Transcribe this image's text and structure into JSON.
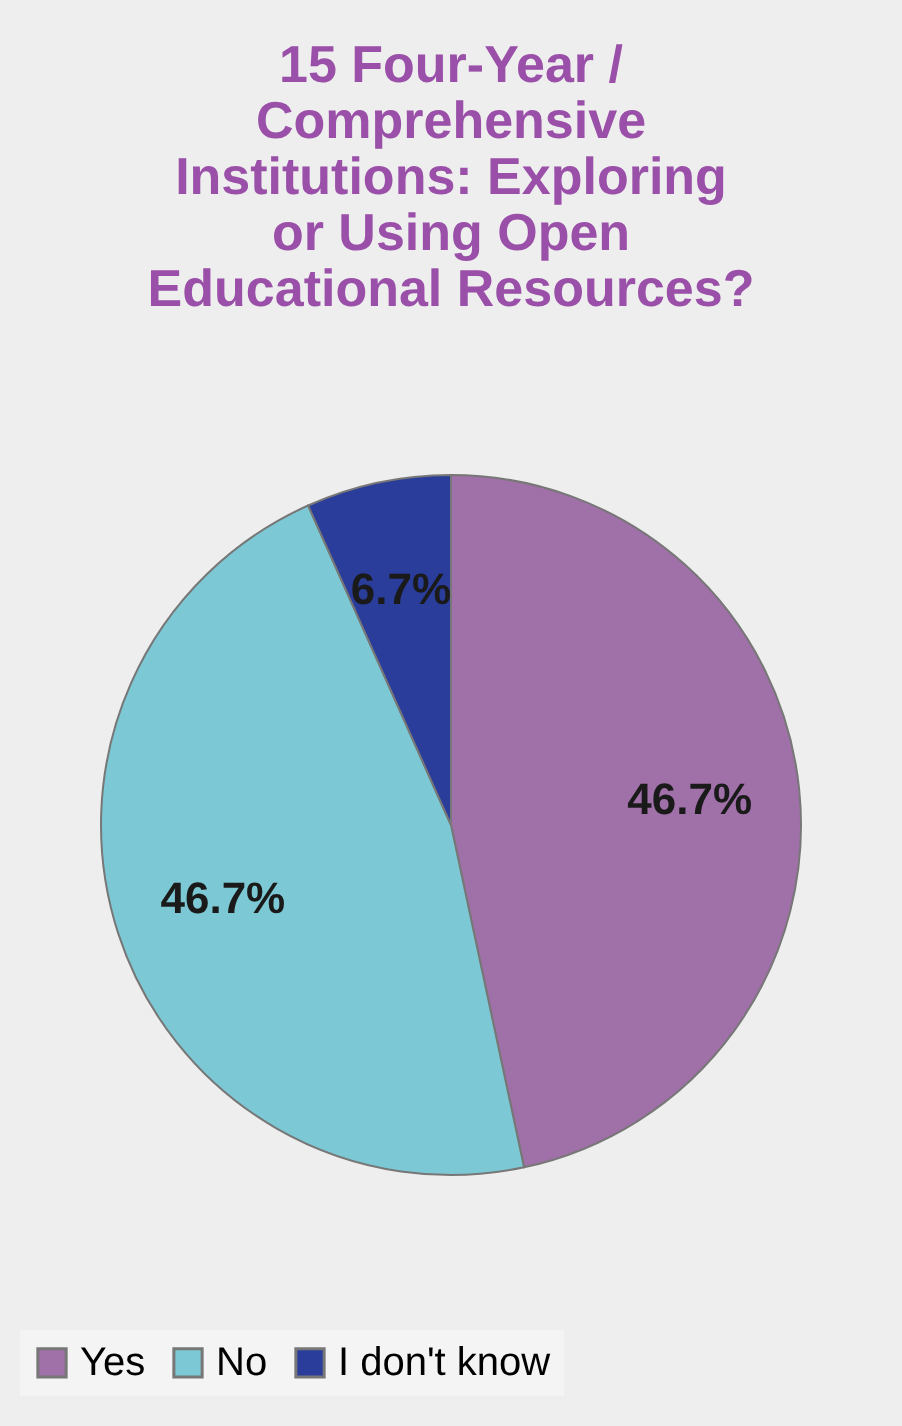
{
  "chart_data": {
    "type": "pie",
    "title": "15 Four-Year / Comprehensive Institutions: Exploring or Using Open Educational Resources?",
    "categories": [
      "Yes",
      "No",
      "I don't know"
    ],
    "values": [
      46.7,
      46.7,
      6.7
    ],
    "colors": [
      "#a070a8",
      "#7cc8d4",
      "#2a3d9a"
    ],
    "value_labels": [
      "46.7%",
      "46.7%",
      "6.7%"
    ],
    "legend": "bottom"
  }
}
